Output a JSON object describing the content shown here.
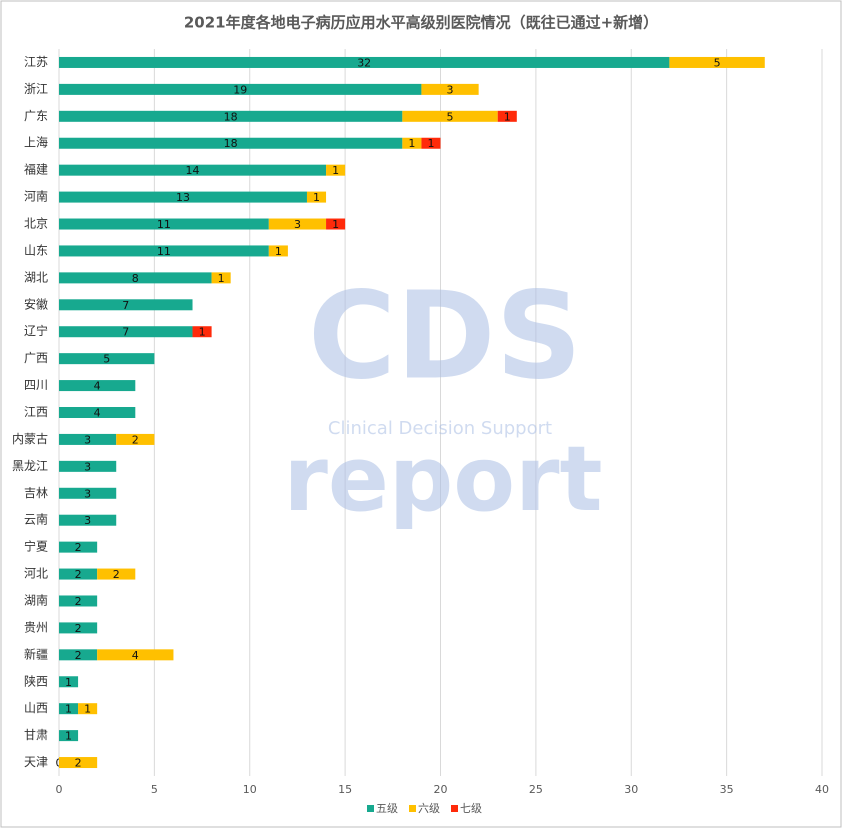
{
  "chart_data": {
    "type": "bar",
    "orientation": "horizontal",
    "stacked": true,
    "title": "2021年度各地电子病历应用水平高级别医院情况（既往已通过+新增）",
    "categories": [
      "江苏",
      "浙江",
      "广东",
      "上海",
      "福建",
      "河南",
      "北京",
      "山东",
      "湖北",
      "安徽",
      "辽宁",
      "广西",
      "四川",
      "江西",
      "内蒙古",
      "黑龙江",
      "吉林",
      "云南",
      "宁夏",
      "河北",
      "湖南",
      "贵州",
      "新疆",
      "陕西",
      "山西",
      "甘肃",
      "天津"
    ],
    "series": [
      {
        "name": "五级",
        "color": "#17a98f",
        "values": [
          32,
          19,
          18,
          18,
          14,
          13,
          11,
          11,
          8,
          7,
          7,
          5,
          4,
          4,
          3,
          3,
          3,
          3,
          2,
          2,
          2,
          2,
          2,
          1,
          1,
          1,
          0
        ]
      },
      {
        "name": "六级",
        "color": "#ffc000",
        "values": [
          5,
          3,
          5,
          1,
          1,
          1,
          3,
          1,
          1,
          null,
          null,
          null,
          null,
          null,
          2,
          null,
          null,
          null,
          null,
          2,
          null,
          null,
          4,
          null,
          1,
          null,
          2
        ]
      },
      {
        "name": "七级",
        "color": "#ff2a0a",
        "values": [
          null,
          null,
          1,
          1,
          null,
          null,
          1,
          null,
          null,
          null,
          1,
          null,
          null,
          null,
          null,
          null,
          null,
          null,
          null,
          null,
          null,
          null,
          null,
          null,
          null,
          null,
          null
        ]
      }
    ],
    "xlim": [
      0,
      40
    ],
    "xticks": [
      0,
      5,
      10,
      15,
      20,
      25,
      30,
      35,
      40
    ],
    "grid": true,
    "legend": "bottom",
    "watermark": {
      "logo": "CDS",
      "subtitle": "Clinical Decision Support",
      "word": "report"
    }
  }
}
